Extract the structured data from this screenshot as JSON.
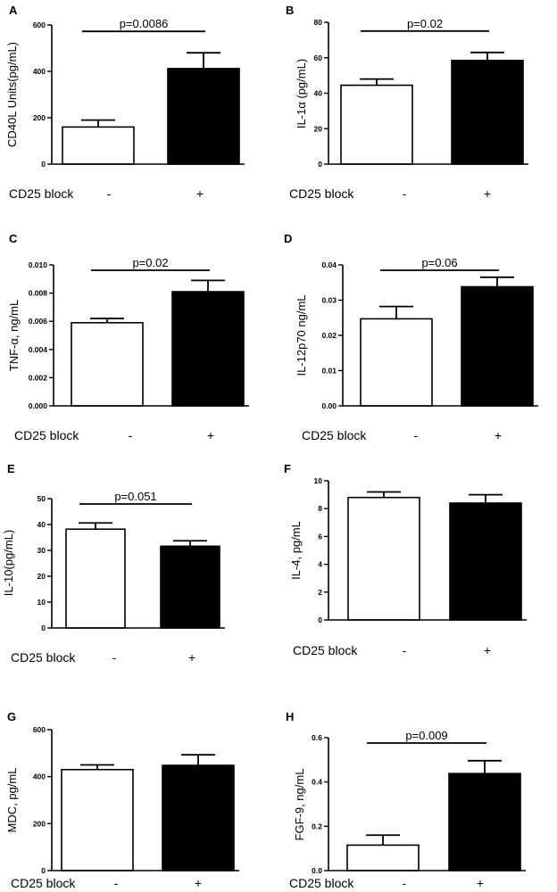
{
  "figure": {
    "condition_label": "CD25 block",
    "groups": [
      "-",
      "+"
    ],
    "bar_colors": [
      "#ffffff",
      "#000000"
    ]
  },
  "chart_data": [
    {
      "panel": "A",
      "type": "bar",
      "ylabel": "CD40L Units(pg/mL)",
      "ylim": [
        0,
        600
      ],
      "yticks": [
        "0",
        "200",
        "400",
        "600"
      ],
      "categories": [
        "-",
        "+"
      ],
      "values": [
        160,
        412
      ],
      "errors": [
        30,
        68
      ],
      "annotation": "p=0.0086"
    },
    {
      "panel": "B",
      "type": "bar",
      "ylabel": "IL-1α (pg/mL)",
      "ylim": [
        0,
        80
      ],
      "yticks": [
        "0",
        "20",
        "40",
        "60",
        "80"
      ],
      "categories": [
        "-",
        "+"
      ],
      "values": [
        44.5,
        58.5
      ],
      "errors": [
        3.5,
        4.5
      ],
      "annotation": "p=0.02"
    },
    {
      "panel": "C",
      "type": "bar",
      "ylabel": "TNF-α, ng/mL",
      "ylim": [
        0,
        0.01
      ],
      "yticks": [
        "0.000",
        "0.002",
        "0.004",
        "0.006",
        "0.008",
        "0.010"
      ],
      "categories": [
        "-",
        "+"
      ],
      "values": [
        0.0059,
        0.0081
      ],
      "errors": [
        0.0003,
        0.0008
      ],
      "annotation": "p=0.02"
    },
    {
      "panel": "D",
      "type": "bar",
      "ylabel": "IL-12p70 ng/mL",
      "ylim": [
        0,
        0.04
      ],
      "yticks": [
        "0.00",
        "0.01",
        "0.02",
        "0.03",
        "0.04"
      ],
      "categories": [
        "-",
        "+"
      ],
      "values": [
        0.0247,
        0.0338
      ],
      "errors": [
        0.0035,
        0.0027
      ],
      "annotation": "p=0.06"
    },
    {
      "panel": "E",
      "type": "bar",
      "ylabel": "IL-10(pg/mL)",
      "ylim": [
        0,
        50
      ],
      "yticks": [
        "0",
        "10",
        "20",
        "30",
        "40",
        "50"
      ],
      "categories": [
        "-",
        "+"
      ],
      "values": [
        38.2,
        31.6
      ],
      "errors": [
        2.4,
        2.1
      ],
      "annotation": "p=0.051"
    },
    {
      "panel": "F",
      "type": "bar",
      "ylabel": "IL-4, pg/mL",
      "ylim": [
        0,
        10
      ],
      "yticks": [
        "0",
        "2",
        "4",
        "6",
        "8",
        "10"
      ],
      "categories": [
        "-",
        "+"
      ],
      "values": [
        8.8,
        8.4
      ],
      "errors": [
        0.4,
        0.6
      ],
      "annotation": ""
    },
    {
      "panel": "G",
      "type": "bar",
      "ylabel": "MDC, pg/mL",
      "ylim": [
        0,
        600
      ],
      "yticks": [
        "0",
        "200",
        "400",
        "600"
      ],
      "categories": [
        "-",
        "+"
      ],
      "values": [
        430,
        448
      ],
      "errors": [
        20,
        45
      ],
      "annotation": ""
    },
    {
      "panel": "H",
      "type": "bar",
      "ylabel": "FGF-9, ng/mL",
      "ylim": [
        0,
        0.6
      ],
      "yticks": [
        "0.0",
        "0.2",
        "0.4",
        "0.6"
      ],
      "categories": [
        "-",
        "+"
      ],
      "values": [
        0.115,
        0.438
      ],
      "errors": [
        0.045,
        0.058
      ],
      "annotation": "p=0.009"
    }
  ]
}
